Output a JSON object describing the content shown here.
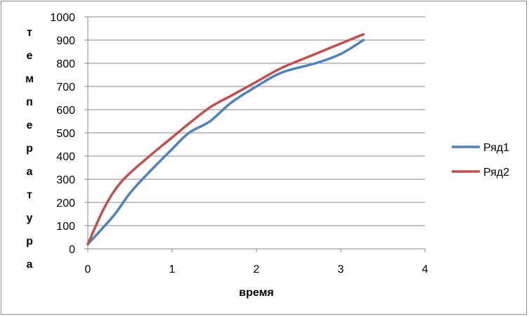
{
  "chart_data": {
    "type": "line",
    "title": "",
    "xlabel": "время",
    "ylabel": "температура",
    "xlim": [
      0,
      4
    ],
    "ylim": [
      0,
      1000
    ],
    "x_ticks": [
      0,
      1,
      2,
      3,
      4
    ],
    "y_ticks": [
      0,
      100,
      200,
      300,
      400,
      500,
      600,
      700,
      800,
      900,
      1000
    ],
    "grid": true,
    "legend_position": "right",
    "series": [
      {
        "name": "Ряд1",
        "color": "#4f81bd",
        "x": [
          0,
          0.3,
          0.5,
          0.7,
          1.0,
          1.2,
          1.45,
          1.7,
          2.0,
          2.3,
          2.7,
          3.0,
          3.27
        ],
        "y": [
          20,
          140,
          240,
          320,
          430,
          500,
          550,
          630,
          700,
          760,
          800,
          840,
          900
        ]
      },
      {
        "name": "Ряд2",
        "color": "#c0504d",
        "x": [
          0,
          0.2,
          0.4,
          0.7,
          1.0,
          1.2,
          1.45,
          1.7,
          2.0,
          2.3,
          2.7,
          3.0,
          3.27
        ],
        "y": [
          20,
          180,
          290,
          390,
          480,
          540,
          610,
          660,
          720,
          780,
          840,
          885,
          925
        ]
      }
    ]
  }
}
